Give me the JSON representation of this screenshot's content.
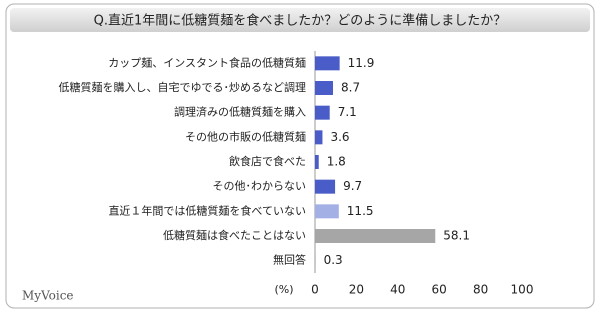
{
  "chart_data": {
    "type": "bar",
    "orientation": "horizontal",
    "title": "Q.直近1年間に低糖質麺を食べましたか？どのように準備しましたか？",
    "categories": [
      "カップ麺、インスタント食品の低糖質麺",
      "低糖質麺を購入し、自宅でゆでる･炒めるなど調理",
      "調理済みの低糖質麺を購入",
      "その他の市販の低糖質麺",
      "飲食店で食べた",
      "その他･わからない",
      "直近１年間では低糖質麺を食べていない",
      "低糖質麺は食べたことはない",
      "無回答"
    ],
    "values": [
      11.9,
      8.7,
      7.1,
      3.6,
      1.8,
      9.7,
      11.5,
      58.1,
      0.3
    ],
    "colors": [
      "#4a5cc8",
      "#4a5cc8",
      "#4a5cc8",
      "#4a5cc8",
      "#4a5cc8",
      "#4a5cc8",
      "#a3b0e6",
      "#a6a6a6",
      "#a6a6a6"
    ],
    "xlim": [
      0,
      100
    ],
    "xticks": [
      0,
      20,
      40,
      60,
      80,
      100
    ],
    "unit_label": "(%)",
    "logo": "MyVoice"
  }
}
